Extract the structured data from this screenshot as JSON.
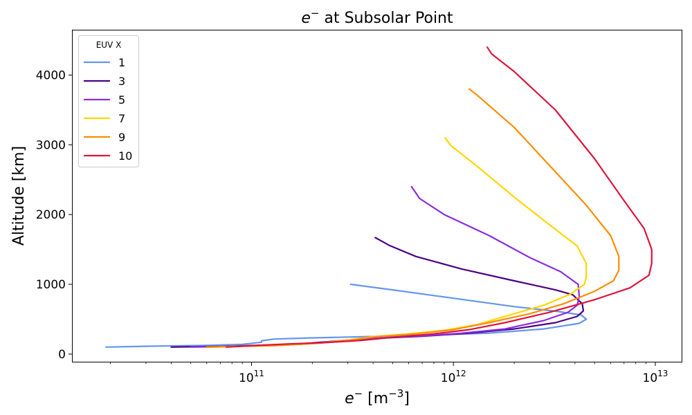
{
  "chart_data": {
    "type": "line",
    "title_parts": {
      "base": "e",
      "sup": "−",
      "rest": " at Subsolar Point"
    },
    "xlabel_parts": {
      "base": "e",
      "sup": "−",
      "unit_base": "  [m",
      "unit_sup": "−3",
      "unit_end": "]"
    },
    "ylabel": "Altitude [km]",
    "xscale": "log",
    "xlim": [
      13000000000.0,
      13500000000000.0
    ],
    "ylim": [
      -110,
      4640
    ],
    "xticks": [
      {
        "value": 100000000000.0,
        "base": "10",
        "exp": "11"
      },
      {
        "value": 1000000000000.0,
        "base": "10",
        "exp": "12"
      },
      {
        "value": 10000000000000.0,
        "base": "10",
        "exp": "13"
      }
    ],
    "yticks": [
      0,
      1000,
      2000,
      3000,
      4000
    ],
    "legend": {
      "title": "EUV X",
      "position": "upper-left"
    },
    "series": [
      {
        "name": "1",
        "color": "#6495ED",
        "points": [
          [
            19000000000.0,
            100
          ],
          [
            30000000000.0,
            112
          ],
          [
            60000000000.0,
            125
          ],
          [
            90000000000.0,
            140
          ],
          [
            112000000000.0,
            170
          ],
          [
            112000000000.0,
            190
          ],
          [
            130000000000.0,
            215
          ],
          [
            200000000000.0,
            232
          ],
          [
            350000000000.0,
            248
          ],
          [
            700000000000.0,
            268
          ],
          [
            1500000000000.0,
            300
          ],
          [
            2800000000000.0,
            360
          ],
          [
            4200000000000.0,
            440
          ],
          [
            4550000000000.0,
            500
          ],
          [
            4300000000000.0,
            560
          ],
          [
            3300000000000.0,
            610
          ],
          [
            2000000000000.0,
            680
          ],
          [
            1000000000000.0,
            800
          ],
          [
            500000000000.0,
            920
          ],
          [
            310000000000.0,
            1000
          ]
        ]
      },
      {
        "name": "3",
        "color": "#4B0082",
        "points": [
          [
            40000000000.0,
            100
          ],
          [
            70000000000.0,
            110
          ],
          [
            120000000000.0,
            130
          ],
          [
            180000000000.0,
            150
          ],
          [
            220000000000.0,
            170
          ],
          [
            300000000000.0,
            200
          ],
          [
            450000000000.0,
            230
          ],
          [
            700000000000.0,
            255
          ],
          [
            1200000000000.0,
            300
          ],
          [
            2000000000000.0,
            360
          ],
          [
            3200000000000.0,
            450
          ],
          [
            4100000000000.0,
            540
          ],
          [
            4400000000000.0,
            620
          ],
          [
            4350000000000.0,
            720
          ],
          [
            3900000000000.0,
            850
          ],
          [
            3200000000000.0,
            920
          ],
          [
            2000000000000.0,
            1050
          ],
          [
            1100000000000.0,
            1220
          ],
          [
            650000000000.0,
            1400
          ],
          [
            480000000000.0,
            1560
          ],
          [
            410000000000.0,
            1670
          ]
        ]
      },
      {
        "name": "5",
        "color": "#8A2BE2",
        "points": [
          [
            50000000000.0,
            100
          ],
          [
            80000000000.0,
            110
          ],
          [
            130000000000.0,
            125
          ],
          [
            200000000000.0,
            150
          ],
          [
            260000000000.0,
            175
          ],
          [
            320000000000.0,
            210
          ],
          [
            500000000000.0,
            240
          ],
          [
            750000000000.0,
            265
          ],
          [
            1100000000000.0,
            300
          ],
          [
            1800000000000.0,
            360
          ],
          [
            2800000000000.0,
            480
          ],
          [
            3700000000000.0,
            600
          ],
          [
            4100000000000.0,
            700
          ],
          [
            4200000000000.0,
            820
          ],
          [
            4150000000000.0,
            1000
          ],
          [
            3400000000000.0,
            1180
          ],
          [
            2400000000000.0,
            1380
          ],
          [
            1500000000000.0,
            1700
          ],
          [
            900000000000.0,
            2000
          ],
          [
            680000000000.0,
            2230
          ],
          [
            620000000000.0,
            2400
          ]
        ]
      },
      {
        "name": "7",
        "color": "#FFD700",
        "points": [
          [
            60000000000.0,
            95
          ],
          [
            80000000000.0,
            110
          ],
          [
            130000000000.0,
            125
          ],
          [
            200000000000.0,
            150
          ],
          [
            300000000000.0,
            200
          ],
          [
            400000000000.0,
            250
          ],
          [
            600000000000.0,
            290
          ],
          [
            900000000000.0,
            340
          ],
          [
            1300000000000.0,
            420
          ],
          [
            1900000000000.0,
            560
          ],
          [
            2800000000000.0,
            700
          ],
          [
            3800000000000.0,
            860
          ],
          [
            4450000000000.0,
            1000
          ],
          [
            4550000000000.0,
            1100
          ],
          [
            4550000000000.0,
            1300
          ],
          [
            4100000000000.0,
            1550
          ],
          [
            3000000000000.0,
            1850
          ],
          [
            2000000000000.0,
            2250
          ],
          [
            1300000000000.0,
            2700
          ],
          [
            970000000000.0,
            2990
          ],
          [
            910000000000.0,
            3100
          ]
        ]
      },
      {
        "name": "9",
        "color": "#FF8C00",
        "points": [
          [
            60000000000.0,
            100
          ],
          [
            85000000000.0,
            110
          ],
          [
            130000000000.0,
            120
          ],
          [
            200000000000.0,
            150
          ],
          [
            300000000000.0,
            195
          ],
          [
            420000000000.0,
            250
          ],
          [
            650000000000.0,
            290
          ],
          [
            1000000000000.0,
            350
          ],
          [
            1500000000000.0,
            450
          ],
          [
            2400000000000.0,
            580
          ],
          [
            3500000000000.0,
            720
          ],
          [
            5000000000000.0,
            900
          ],
          [
            6200000000000.0,
            1050
          ],
          [
            6600000000000.0,
            1200
          ],
          [
            6600000000000.0,
            1400
          ],
          [
            6000000000000.0,
            1700
          ],
          [
            4500000000000.0,
            2150
          ],
          [
            3000000000000.0,
            2700
          ],
          [
            2000000000000.0,
            3250
          ],
          [
            1350000000000.0,
            3680
          ],
          [
            1200000000000.0,
            3800
          ]
        ]
      },
      {
        "name": "10",
        "color": "#DC143C",
        "points": [
          [
            75000000000.0,
            100
          ],
          [
            100000000000.0,
            120
          ],
          [
            150000000000.0,
            145
          ],
          [
            230000000000.0,
            165
          ],
          [
            350000000000.0,
            195
          ],
          [
            500000000000.0,
            240
          ],
          [
            800000000000.0,
            290
          ],
          [
            1200000000000.0,
            350
          ],
          [
            1800000000000.0,
            450
          ],
          [
            3000000000000.0,
            600
          ],
          [
            5000000000000.0,
            780
          ],
          [
            7500000000000.0,
            950
          ],
          [
            9300000000000.0,
            1130
          ],
          [
            9600000000000.0,
            1300
          ],
          [
            9600000000000.0,
            1500
          ],
          [
            8800000000000.0,
            1800
          ],
          [
            7000000000000.0,
            2200
          ],
          [
            5000000000000.0,
            2800
          ],
          [
            3200000000000.0,
            3500
          ],
          [
            2000000000000.0,
            4050
          ],
          [
            1550000000000.0,
            4300
          ],
          [
            1470000000000.0,
            4400
          ]
        ]
      }
    ]
  }
}
